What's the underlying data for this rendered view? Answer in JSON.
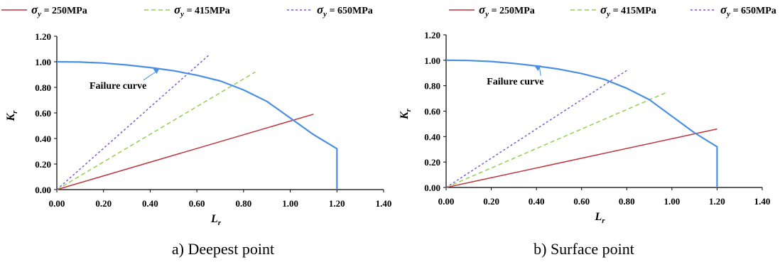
{
  "legend": [
    {
      "symbol": "σ",
      "sub": "y",
      "label": " = 250MPa",
      "color": "#c0343b",
      "dash": ""
    },
    {
      "symbol": "σ",
      "sub": "y",
      "label": " =  415MPa",
      "color": "#92d050",
      "dash": "6,4"
    },
    {
      "symbol": "σ",
      "sub": "y",
      "label": " = 650MPa",
      "color": "#7a5ccf",
      "dash": "3,3"
    }
  ],
  "chart_data": [
    {
      "type": "line",
      "caption": "a) Deepest point",
      "xlabel": "L",
      "xlabel_sub": "r",
      "ylabel": "K",
      "ylabel_sub": "r",
      "xlim": [
        0,
        1.4
      ],
      "ylim": [
        0,
        1.2
      ],
      "xticks": [
        "0.00",
        "0.20",
        "0.40",
        "0.60",
        "0.80",
        "1.00",
        "1.20",
        "1.40"
      ],
      "yticks": [
        "0.00",
        "0.20",
        "0.40",
        "0.60",
        "0.80",
        "1.00",
        "1.20"
      ],
      "annotation": {
        "text": "Failure curve",
        "x": 0.44,
        "y": 0.95
      },
      "series": [
        {
          "name": "σy = 250MPa",
          "color": "#c0343b",
          "dash": "",
          "width": 1.5,
          "x": [
            0,
            1.1
          ],
          "y": [
            0,
            0.59
          ]
        },
        {
          "name": "σy = 415MPa",
          "color": "#92d050",
          "dash": "6,4",
          "width": 1.5,
          "x": [
            0,
            0.85
          ],
          "y": [
            0,
            0.92
          ]
        },
        {
          "name": "σy = 650MPa",
          "color": "#7a5ccf",
          "dash": "3,3",
          "width": 1.5,
          "x": [
            0,
            0.65
          ],
          "y": [
            0,
            1.05
          ]
        },
        {
          "name": "Failure curve",
          "color": "#4a90e2",
          "dash": "",
          "width": 2.2,
          "x": [
            0,
            0.1,
            0.2,
            0.3,
            0.4,
            0.5,
            0.6,
            0.7,
            0.8,
            0.9,
            1.0,
            1.1,
            1.2,
            1.2
          ],
          "y": [
            1.0,
            0.998,
            0.99,
            0.975,
            0.955,
            0.93,
            0.895,
            0.85,
            0.78,
            0.69,
            0.56,
            0.43,
            0.32,
            0.0
          ]
        }
      ]
    },
    {
      "type": "line",
      "caption": "b) Surface point",
      "xlabel": "L",
      "xlabel_sub": "r",
      "ylabel": "K",
      "ylabel_sub": "r",
      "xlim": [
        0,
        1.4
      ],
      "ylim": [
        0,
        1.2
      ],
      "xticks": [
        "0.00",
        "0.20",
        "0.40",
        "0.60",
        "0.80",
        "1.00",
        "1.20",
        "1.40"
      ],
      "yticks": [
        "0.00",
        "0.20",
        "0.40",
        "0.60",
        "0.80",
        "1.00",
        "1.20"
      ],
      "annotation": {
        "text": "Failure curve",
        "x": 0.42,
        "y": 0.96
      },
      "series": [
        {
          "name": "σy = 250MPa",
          "color": "#c0343b",
          "dash": "",
          "width": 1.5,
          "x": [
            0,
            1.2
          ],
          "y": [
            0,
            0.46
          ]
        },
        {
          "name": "σy = 415MPa",
          "color": "#92d050",
          "dash": "6,4",
          "width": 1.5,
          "x": [
            0,
            0.98
          ],
          "y": [
            0,
            0.75
          ]
        },
        {
          "name": "σy = 650MPa",
          "color": "#7a5ccf",
          "dash": "3,3",
          "width": 1.5,
          "x": [
            0,
            0.8
          ],
          "y": [
            0,
            0.92
          ]
        },
        {
          "name": "Failure curve",
          "color": "#4a90e2",
          "dash": "",
          "width": 2.2,
          "x": [
            0,
            0.1,
            0.2,
            0.3,
            0.4,
            0.5,
            0.6,
            0.7,
            0.8,
            0.9,
            1.0,
            1.1,
            1.2,
            1.2
          ],
          "y": [
            1.0,
            0.998,
            0.99,
            0.975,
            0.955,
            0.93,
            0.895,
            0.85,
            0.78,
            0.69,
            0.56,
            0.43,
            0.32,
            0.0
          ]
        }
      ]
    }
  ]
}
